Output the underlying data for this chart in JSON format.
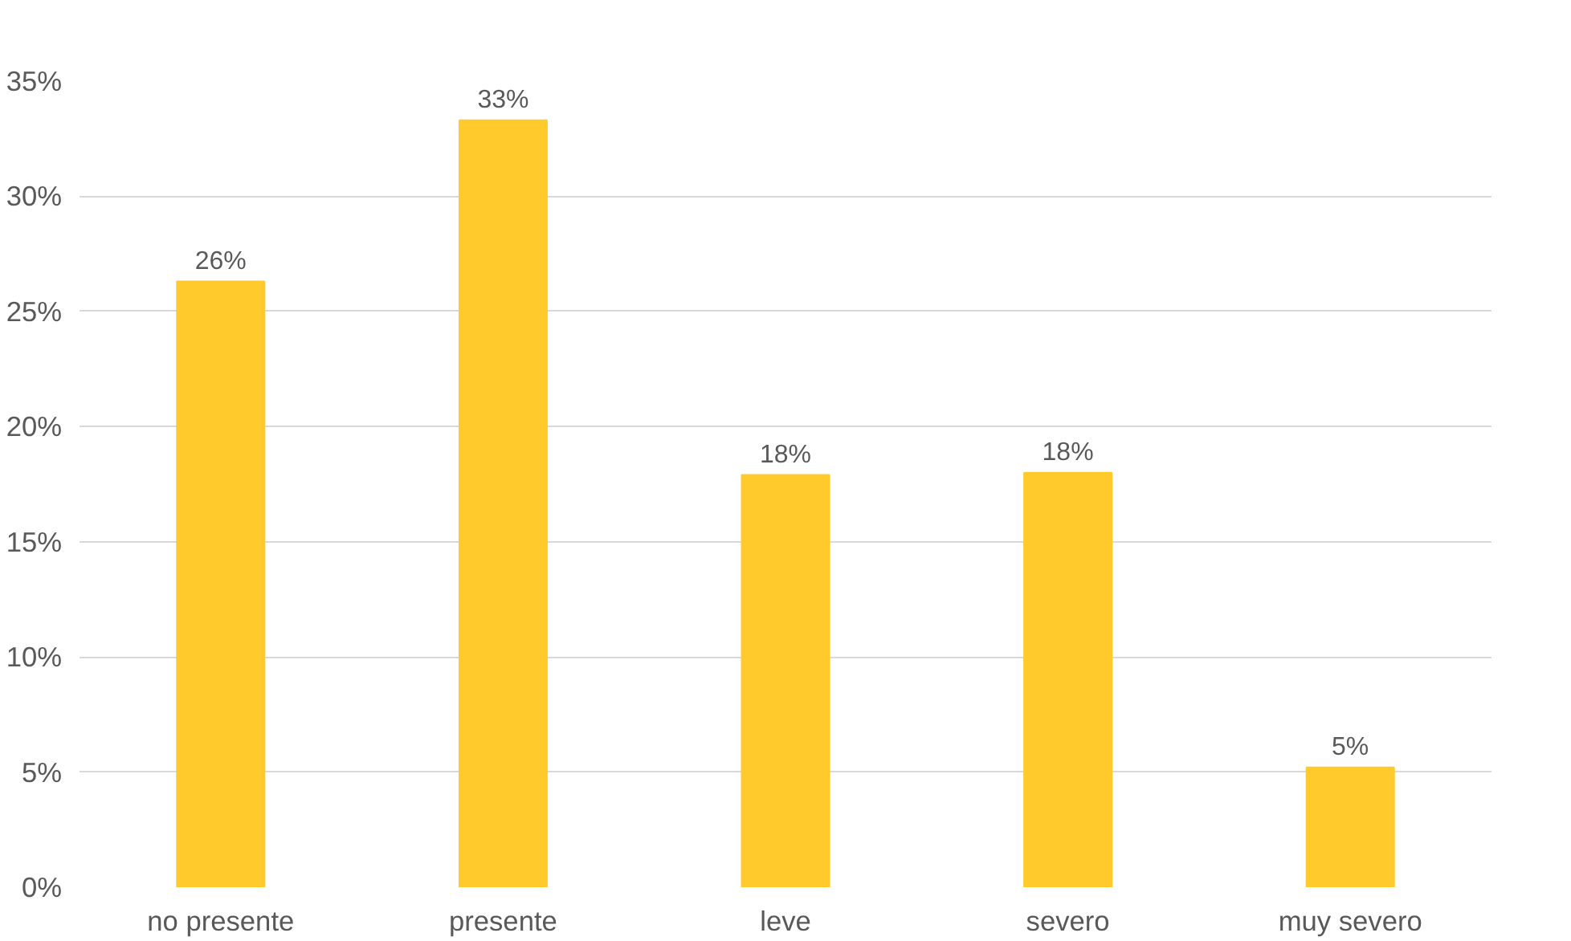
{
  "chart_data": {
    "type": "bar",
    "categories": [
      "no presente",
      "presente",
      "leve",
      "severo",
      "muy severo"
    ],
    "values": [
      26.3,
      33.3,
      17.9,
      18.0,
      5.2
    ],
    "value_labels": [
      "26%",
      "33%",
      "18%",
      "18%",
      "5%"
    ],
    "color": "#ffca2c",
    "ylim": [
      0,
      35
    ],
    "yticks": [
      {
        "value": 0,
        "label": "0%"
      },
      {
        "value": 5,
        "label": "5%"
      },
      {
        "value": 10,
        "label": "10%"
      },
      {
        "value": 15,
        "label": "15%"
      },
      {
        "value": 20,
        "label": "20%"
      },
      {
        "value": 25,
        "label": "25%"
      },
      {
        "value": 30,
        "label": "30%"
      },
      {
        "value": 35,
        "label": "35%"
      }
    ],
    "grid": "y"
  }
}
